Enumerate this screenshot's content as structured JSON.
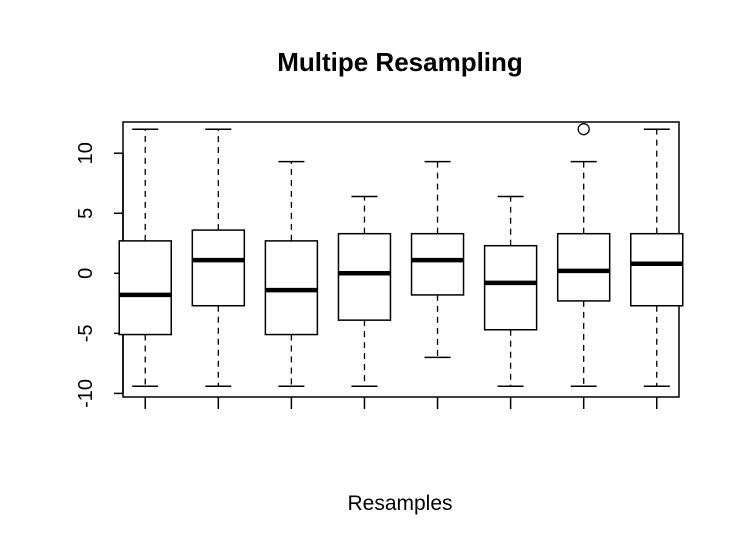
{
  "chart_data": {
    "type": "boxplot",
    "title": "Multipe Resampling",
    "xlabel": "Resamples",
    "ylabel": "",
    "ylim": [
      -10.3,
      12.6
    ],
    "yticks": [
      -10,
      -5,
      0,
      5,
      10
    ],
    "ytick_labels": [
      "-10",
      "-5",
      "0",
      "5",
      "10"
    ],
    "grid": false,
    "boxes": [
      {
        "whisker_low": -9.4,
        "q1": -5.1,
        "median": -1.8,
        "q3": 2.7,
        "whisker_high": 12.0,
        "outliers": []
      },
      {
        "whisker_low": -9.4,
        "q1": -2.7,
        "median": 1.1,
        "q3": 3.6,
        "whisker_high": 12.0,
        "outliers": []
      },
      {
        "whisker_low": -9.4,
        "q1": -5.1,
        "median": -1.4,
        "q3": 2.7,
        "whisker_high": 9.3,
        "outliers": []
      },
      {
        "whisker_low": -9.4,
        "q1": -3.9,
        "median": 0.0,
        "q3": 3.3,
        "whisker_high": 6.4,
        "outliers": []
      },
      {
        "whisker_low": -7.0,
        "q1": -1.8,
        "median": 1.1,
        "q3": 3.3,
        "whisker_high": 9.3,
        "outliers": []
      },
      {
        "whisker_low": -9.4,
        "q1": -4.7,
        "median": -0.8,
        "q3": 2.3,
        "whisker_high": 6.4,
        "outliers": []
      },
      {
        "whisker_low": -9.4,
        "q1": -2.3,
        "median": 0.2,
        "q3": 3.3,
        "whisker_high": 9.3,
        "outliers": [
          12.0
        ]
      },
      {
        "whisker_low": -9.4,
        "q1": -2.7,
        "median": 0.8,
        "q3": 3.3,
        "whisker_high": 12.0,
        "outliers": []
      }
    ]
  }
}
